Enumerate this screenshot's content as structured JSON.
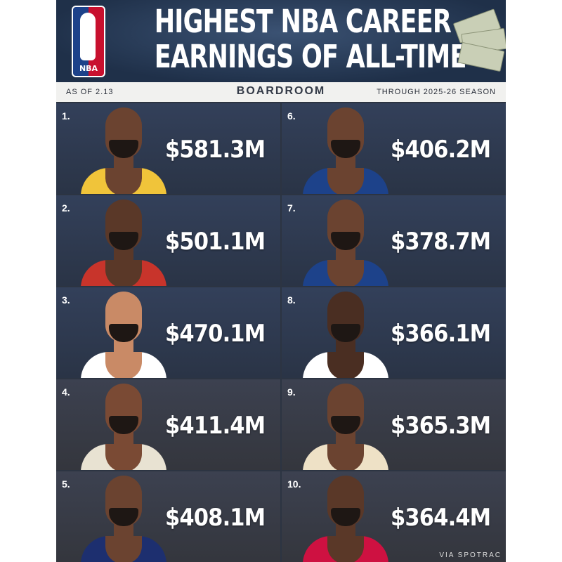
{
  "header": {
    "title_line1": "HIGHEST NBA CAREER",
    "title_line2": "EARNINGS OF ALL-TIME",
    "logo_text": "NBA"
  },
  "subheader": {
    "left": "AS OF 2.13",
    "brand": "BOARDROOM",
    "right": "THROUGH 2025-26 SEASON"
  },
  "players": [
    {
      "rank": "1.",
      "earnings": "$581.3M",
      "jersey_color": "#f0c43a",
      "skin": "#6b4330"
    },
    {
      "rank": "2.",
      "earnings": "$501.1M",
      "jersey_color": "#c8342b",
      "skin": "#5a3828"
    },
    {
      "rank": "3.",
      "earnings": "$470.1M",
      "jersey_color": "#ffffff",
      "skin": "#c98a66"
    },
    {
      "rank": "4.",
      "earnings": "$411.4M",
      "jersey_color": "#e8e2d2",
      "skin": "#7a4a34"
    },
    {
      "rank": "5.",
      "earnings": "$408.1M",
      "jersey_color": "#1d2f6f",
      "skin": "#6b4330"
    },
    {
      "rank": "6.",
      "earnings": "$406.2M",
      "jersey_color": "#1d428a",
      "skin": "#6b4330"
    },
    {
      "rank": "7.",
      "earnings": "$378.7M",
      "jersey_color": "#1d428a",
      "skin": "#6b4330"
    },
    {
      "rank": "8.",
      "earnings": "$366.1M",
      "jersey_color": "#ffffff",
      "skin": "#4a2e22"
    },
    {
      "rank": "9.",
      "earnings": "$365.3M",
      "jersey_color": "#eee1c6",
      "skin": "#6b4330"
    },
    {
      "rank": "10.",
      "earnings": "$364.4M",
      "jersey_color": "#ce1141",
      "skin": "#5a3828"
    }
  ],
  "footer": {
    "source": "VIA SPOTRAC"
  }
}
